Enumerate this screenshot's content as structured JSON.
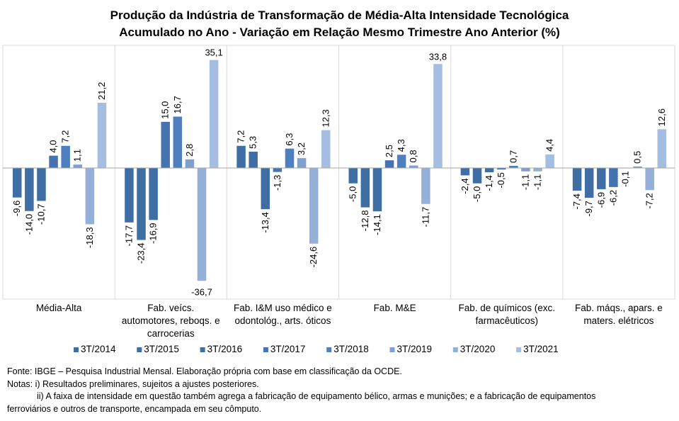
{
  "chart_data": {
    "type": "bar",
    "title": "Produção da Indústria de Transformação  de Média-Alta  Intensidade Tecnológica",
    "subtitle": "Acumulado  no Ano - Variação  em Relação Mesmo Trimestre Ano Anterior (%)",
    "categories": [
      [
        "Média-Alta"
      ],
      [
        "Fab. veícs.",
        "automotores, reboqs. e",
        "carrocerias"
      ],
      [
        "Fab. I&M uso médico e",
        "odontológ., arts. óticos"
      ],
      [
        "Fab. M&E"
      ],
      [
        "Fab. de químicos (exc.",
        "farmacêuticos)"
      ],
      [
        "Fab. máqs., apars. e",
        "maters. elétricos"
      ]
    ],
    "series": [
      {
        "name": "3T/2014",
        "color": "#3f6ea5",
        "values": [
          -9.6,
          -17.7,
          7.2,
          -5.0,
          -2.4,
          -7.4
        ]
      },
      {
        "name": "3T/2015",
        "color": "#3f6ea5",
        "values": [
          -14.0,
          -23.4,
          5.3,
          -12.8,
          -5.0,
          -9.7
        ]
      },
      {
        "name": "3T/2016",
        "color": "#3f6ea5",
        "values": [
          -10.7,
          -16.9,
          -13.4,
          -14.1,
          -1.4,
          -6.9
        ]
      },
      {
        "name": "3T/2017",
        "color": "#4673b0",
        "values": [
          4.0,
          15.0,
          -1.3,
          2.5,
          -0.5,
          -6.2
        ]
      },
      {
        "name": "3T/2018",
        "color": "#4f7fbf",
        "values": [
          7.2,
          16.7,
          6.3,
          4.3,
          0.7,
          -0.1
        ]
      },
      {
        "name": "3T/2019",
        "color": "#7e9fcf",
        "values": [
          1.1,
          2.8,
          3.2,
          0.8,
          -1.1,
          0.5
        ]
      },
      {
        "name": "3T/2020",
        "color": "#94b0d8",
        "values": [
          -18.3,
          -36.7,
          -24.6,
          -11.7,
          -1.1,
          -7.2
        ]
      },
      {
        "name": "3T/2021",
        "color": "#a4bde0",
        "values": [
          21.2,
          35.1,
          12.3,
          33.8,
          4.4,
          12.6
        ]
      }
    ],
    "ylim": [
      -40,
      40
    ],
    "legend": "bottom",
    "grid": false
  },
  "notes": {
    "fonte": "Fonte: IBGE – Pesquisa Industrial Mensal. Elaboração própria com base em classificação da OCDE.",
    "nota1": "Notas: i) Resultados preliminares, sujeitos a ajustes posteriores.",
    "nota2a": "ii) A faixa de intensidade em questão também agrega a fabricação de equipamento bélico, armas e munições; e a fabricação de equipamentos",
    "nota2b": "ferroviários e outros de transporte, encampada em seu cômputo."
  }
}
